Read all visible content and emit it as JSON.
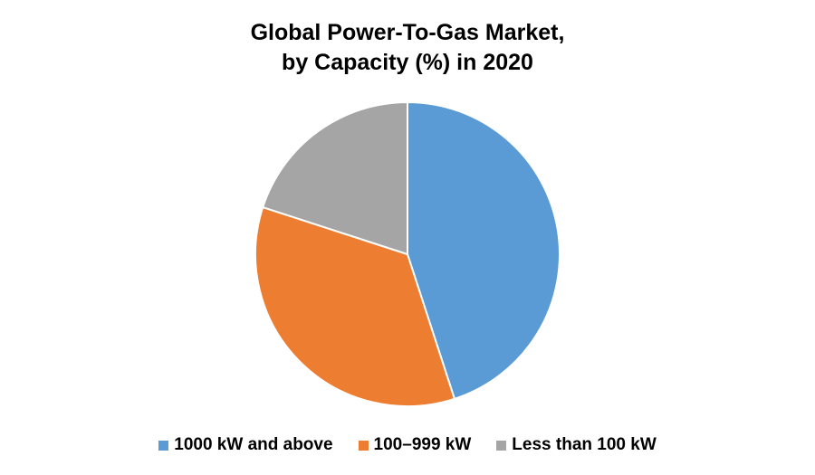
{
  "chart_data": {
    "type": "pie",
    "title": [
      "Global Power-To-Gas Market,",
      "by Capacity (%) in 2020"
    ],
    "categories": [
      "1000 kW and above",
      "100–999 kW",
      "Less than 100 kW"
    ],
    "values": [
      45,
      35,
      20
    ],
    "colors": [
      "#5B9BD5",
      "#ED7D31",
      "#A5A5A5"
    ],
    "start_angle_deg": 0,
    "direction": "clockwise",
    "legend_position": "bottom"
  }
}
